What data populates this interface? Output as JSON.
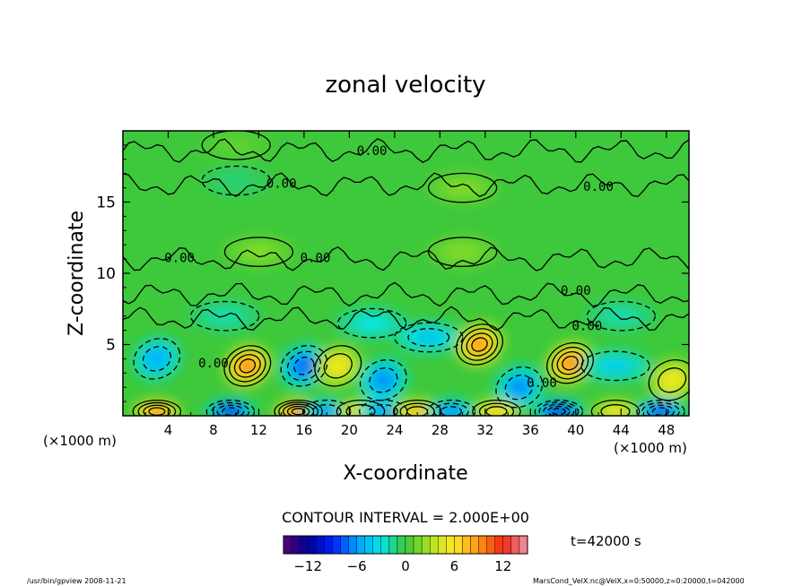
{
  "chart_data": {
    "type": "heatmap",
    "title": "zonal velocity",
    "xlabel": "X-coordinate",
    "ylabel": "Z-coordinate",
    "x_unit": "(×1000 m)",
    "z_unit": "(×1000 m)",
    "xlim": [
      0,
      50
    ],
    "ylim": [
      0,
      20
    ],
    "x_ticks": [
      "4",
      "8",
      "12",
      "16",
      "20",
      "24",
      "28",
      "32",
      "36",
      "40",
      "44",
      "48"
    ],
    "y_ticks": [
      "5",
      "10",
      "15"
    ],
    "contour_interval_label": "CONTOUR INTERVAL = 2.000E+00",
    "contour_labels": [
      "0.00",
      "0.00",
      "0.00",
      "0.00",
      "0.00",
      "0.00",
      "0.00",
      "0.00",
      "0.00"
    ],
    "colorbar": {
      "range": [
        -15,
        15
      ],
      "ticks": [
        "−12",
        "−6",
        "0",
        "6",
        "12"
      ],
      "tick_values": [
        -12,
        -6,
        0,
        6,
        12
      ]
    },
    "time_label": "t=42000 s",
    "footer_left": "/usr/bin/gpview  2008-11-21",
    "footer_right": "MarsCond_VelX.nc@VelX,x=0:50000,z=0:20000,t=042000",
    "features": [
      {
        "x": 3,
        "z": 4.0,
        "value": -6
      },
      {
        "x": 11,
        "z": 3.5,
        "value": 11
      },
      {
        "x": 16,
        "z": 3.5,
        "value": -9
      },
      {
        "x": 19,
        "z": 3.5,
        "value": 6
      },
      {
        "x": 23,
        "z": 2.5,
        "value": -7
      },
      {
        "x": 27,
        "z": 5.5,
        "value": -5
      },
      {
        "x": 31.5,
        "z": 5.0,
        "value": 10
      },
      {
        "x": 35,
        "z": 2.0,
        "value": -7
      },
      {
        "x": 39.5,
        "z": 3.7,
        "value": 11
      },
      {
        "x": 43.5,
        "z": 3.5,
        "value": -4
      },
      {
        "x": 48.5,
        "z": 2.5,
        "value": 6
      },
      {
        "x": 3,
        "z": 0.3,
        "value": 11
      },
      {
        "x": 9.5,
        "z": 0.3,
        "value": -12
      },
      {
        "x": 15.5,
        "z": 0.3,
        "value": 13
      },
      {
        "x": 18,
        "z": 0.3,
        "value": -7
      },
      {
        "x": 21,
        "z": 0.3,
        "value": 7
      },
      {
        "x": 23,
        "z": 0.3,
        "value": -7
      },
      {
        "x": 26,
        "z": 0.3,
        "value": 9
      },
      {
        "x": 29,
        "z": 0.3,
        "value": -8
      },
      {
        "x": 33,
        "z": 0.3,
        "value": 8
      },
      {
        "x": 38.5,
        "z": 0.3,
        "value": -13
      },
      {
        "x": 43.5,
        "z": 0.3,
        "value": 6
      },
      {
        "x": 47.5,
        "z": 0.3,
        "value": -11
      },
      {
        "x": 9,
        "z": 7.0,
        "value": -2
      },
      {
        "x": 22,
        "z": 6.5,
        "value": -3
      },
      {
        "x": 44,
        "z": 7.0,
        "value": -2
      },
      {
        "x": 12,
        "z": 11.5,
        "value": 2
      },
      {
        "x": 30,
        "z": 11.5,
        "value": 2
      },
      {
        "x": 10,
        "z": 16.5,
        "value": -1
      },
      {
        "x": 30,
        "z": 16.0,
        "value": 2
      },
      {
        "x": 10,
        "z": 19.0,
        "value": 1
      }
    ]
  }
}
